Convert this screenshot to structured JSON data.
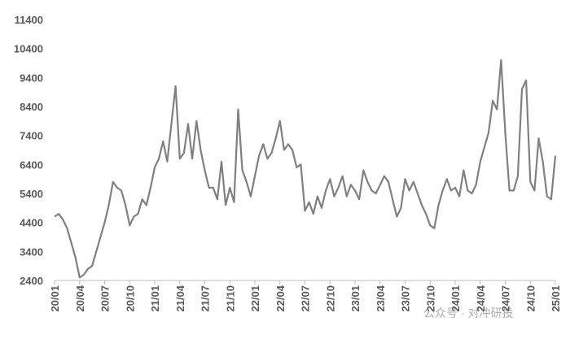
{
  "chart_data": {
    "type": "line",
    "categories": [
      "20/01",
      null,
      null,
      null,
      null,
      null,
      "20/04",
      null,
      null,
      null,
      null,
      null,
      "20/07",
      null,
      null,
      null,
      null,
      null,
      "20/10",
      null,
      null,
      null,
      null,
      null,
      "21/01",
      null,
      null,
      null,
      null,
      null,
      "21/04",
      null,
      null,
      null,
      null,
      null,
      "21/07",
      null,
      null,
      null,
      null,
      null,
      "21/10",
      null,
      null,
      null,
      null,
      null,
      "22/01",
      null,
      null,
      null,
      null,
      null,
      "22/04",
      null,
      null,
      null,
      null,
      null,
      "22/07",
      null,
      null,
      null,
      null,
      null,
      "22/10",
      null,
      null,
      null,
      null,
      null,
      "23/01",
      null,
      null,
      null,
      null,
      null,
      "23/04",
      null,
      null,
      null,
      null,
      null,
      "23/07",
      null,
      null,
      null,
      null,
      null,
      "23/10",
      null,
      null,
      null,
      null,
      null,
      "24/01",
      null,
      null,
      null,
      null,
      null,
      "24/04",
      null,
      null,
      null,
      null,
      null,
      "24/07",
      null,
      null,
      null,
      null,
      null,
      "24/10",
      null,
      null,
      null,
      null,
      null,
      "25/01"
    ],
    "series": [
      {
        "color": "#808080",
        "values": [
          4600,
          4700,
          4500,
          4200,
          3700,
          3200,
          2500,
          2600,
          2800,
          2900,
          3400,
          3900,
          4400,
          5000,
          5800,
          5600,
          5500,
          5000,
          4300,
          4600,
          4700,
          5200,
          5000,
          5600,
          6300,
          6600,
          7200,
          6500,
          7800,
          9100,
          6600,
          6800,
          7800,
          6600,
          7900,
          6900,
          6200,
          5600,
          5600,
          5200,
          6500,
          5000,
          5600,
          5100,
          8300,
          6200,
          5800,
          5300,
          6000,
          6700,
          7100,
          6600,
          6800,
          7300,
          7900,
          6900,
          7100,
          6900,
          6300,
          6400,
          4800,
          5100,
          4700,
          5300,
          4900,
          5500,
          5900,
          5300,
          5600,
          6000,
          5300,
          5700,
          5500,
          5200,
          6200,
          5800,
          5500,
          5400,
          5700,
          6000,
          5800,
          5200,
          4600,
          4900,
          5900,
          5500,
          5800,
          5400,
          5000,
          4700,
          4300,
          4200,
          5000,
          5500,
          5900,
          5500,
          5600,
          5300,
          6200,
          5500,
          5400,
          5700,
          6500,
          7000,
          7500,
          8600,
          8300,
          10000,
          7500,
          5500,
          5500,
          6000,
          9000,
          9300,
          5800,
          5500,
          7300,
          6500,
          5300,
          5200,
          6700
        ]
      }
    ],
    "ylim": [
      2400,
      11400
    ],
    "yticks": [
      2400,
      3400,
      4400,
      5400,
      6400,
      7400,
      8400,
      9400,
      10400,
      11400
    ],
    "grid": false,
    "watermark": "公众号 · 对冲研投"
  }
}
